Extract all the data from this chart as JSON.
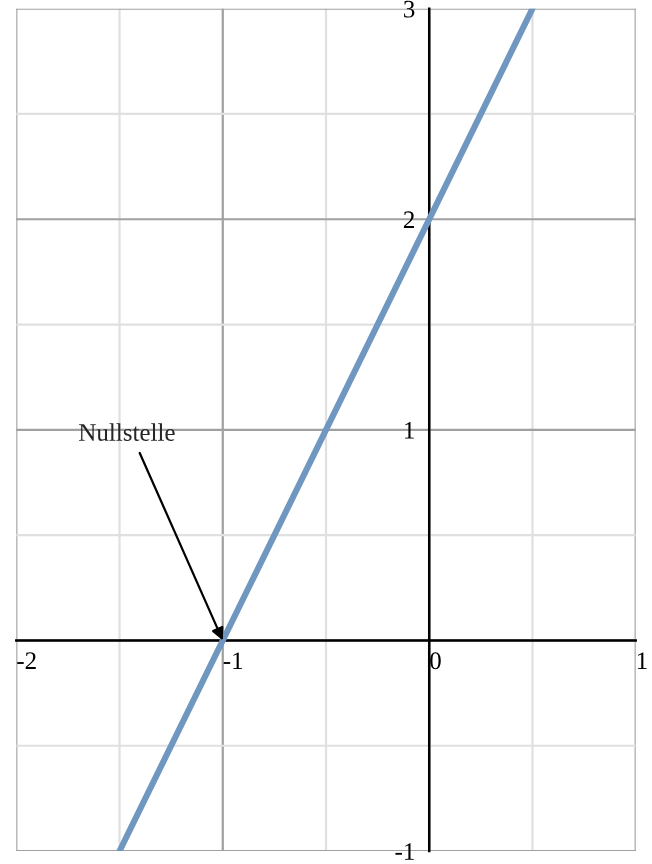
{
  "chart_data": {
    "type": "line",
    "x": [
      -1.5,
      0.5
    ],
    "series": [
      {
        "color": "#6f97c0",
        "values": [
          -1,
          3
        ]
      }
    ],
    "xlim": [
      -2,
      1
    ],
    "ylim": [
      -1,
      3
    ],
    "xticks": [
      -2,
      -1,
      0,
      1
    ],
    "yticks": [
      -1,
      {
        "value": 0,
        "label": null
      },
      1,
      2,
      3
    ],
    "grid": true,
    "annotations": [
      {
        "text": "Nullstelle",
        "x": -1,
        "y": 0
      }
    ]
  }
}
